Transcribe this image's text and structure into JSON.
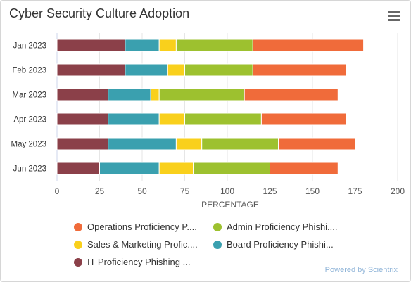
{
  "header": {
    "title": "Cyber Security Culture Adoption",
    "menu_icon": "hamburger-menu-icon"
  },
  "chart_data": {
    "type": "bar",
    "orientation": "horizontal",
    "stacked": true,
    "categories": [
      "Jan 2023",
      "Feb 2023",
      "Mar 2023",
      "Apr 2023",
      "May 2023",
      "Jun 2023"
    ],
    "series": [
      {
        "name": "IT Proficiency Phishing ...",
        "color": "#8b4049",
        "values": [
          40,
          40,
          30,
          30,
          30,
          25
        ]
      },
      {
        "name": "Board Proficiency Phishi...",
        "color": "#3aa0af",
        "values": [
          20,
          25,
          25,
          30,
          40,
          35
        ]
      },
      {
        "name": "Sales & Marketing Profic....",
        "color": "#f9d01c",
        "values": [
          10,
          10,
          5,
          15,
          15,
          20
        ]
      },
      {
        "name": "Admin Proficiency Phishi....",
        "color": "#9dc12f",
        "values": [
          45,
          40,
          50,
          45,
          45,
          45
        ]
      },
      {
        "name": "Operations Proficiency P....",
        "color": "#f06b3a",
        "values": [
          65,
          55,
          55,
          50,
          45,
          40
        ]
      }
    ],
    "xlabel": "PERCENTAGE",
    "xlim": [
      0,
      200
    ],
    "xticks": [
      "0",
      "25",
      "50",
      "75",
      "100",
      "125",
      "150",
      "175",
      "200"
    ],
    "grid": true,
    "legend_position": "bottom"
  },
  "legend": {
    "rows": [
      [
        "Operations Proficiency P....",
        "Admin Proficiency Phishi...."
      ],
      [
        "Sales & Marketing Profic....",
        "Board Proficiency Phishi..."
      ],
      [
        "IT Proficiency Phishing ..."
      ]
    ]
  },
  "credits": "Powered by Scientrix"
}
